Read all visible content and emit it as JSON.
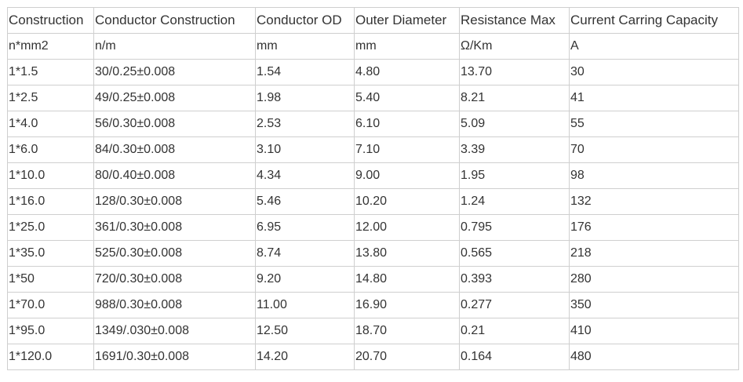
{
  "columns": [
    "Construction",
    "Conductor Construction",
    "Conductor OD",
    "Outer Diameter",
    "Resistance Max",
    "Current Carring Capacity"
  ],
  "units": [
    "n*mm2",
    "n/m",
    "mm",
    "mm",
    "Ω/Km",
    "A"
  ],
  "rows": [
    [
      "1*1.5",
      "30/0.25±0.008",
      "1.54",
      "4.80",
      "13.70",
      "30"
    ],
    [
      "1*2.5",
      "49/0.25±0.008",
      "1.98",
      "5.40",
      "8.21",
      "41"
    ],
    [
      "1*4.0",
      "56/0.30±0.008",
      "2.53",
      "6.10",
      "5.09",
      "55"
    ],
    [
      "1*6.0",
      "84/0.30±0.008",
      "3.10",
      "7.10",
      "3.39",
      "70"
    ],
    [
      "1*10.0",
      "80/0.40±0.008",
      "4.34",
      "9.00",
      "1.95",
      "98"
    ],
    [
      "1*16.0",
      "128/0.30±0.008",
      "5.46",
      "10.20",
      "1.24",
      "132"
    ],
    [
      "1*25.0",
      "361/0.30±0.008",
      "6.95",
      "12.00",
      "0.795",
      "176"
    ],
    [
      "1*35.0",
      "525/0.30±0.008",
      "8.74",
      "13.80",
      "0.565",
      "218"
    ],
    [
      "1*50",
      "720/0.30±0.008",
      "9.20",
      "14.80",
      "0.393",
      "280"
    ],
    [
      "1*70.0",
      "988/0.30±0.008",
      "11.00",
      "16.90",
      "0.277",
      "350"
    ],
    [
      "1*95.0",
      "1349/.030±0.008",
      "12.50",
      "18.70",
      "0.21",
      "410"
    ],
    [
      "1*120.0",
      "1691/0.30±0.008",
      "14.20",
      "20.70",
      "0.164",
      "480"
    ]
  ]
}
